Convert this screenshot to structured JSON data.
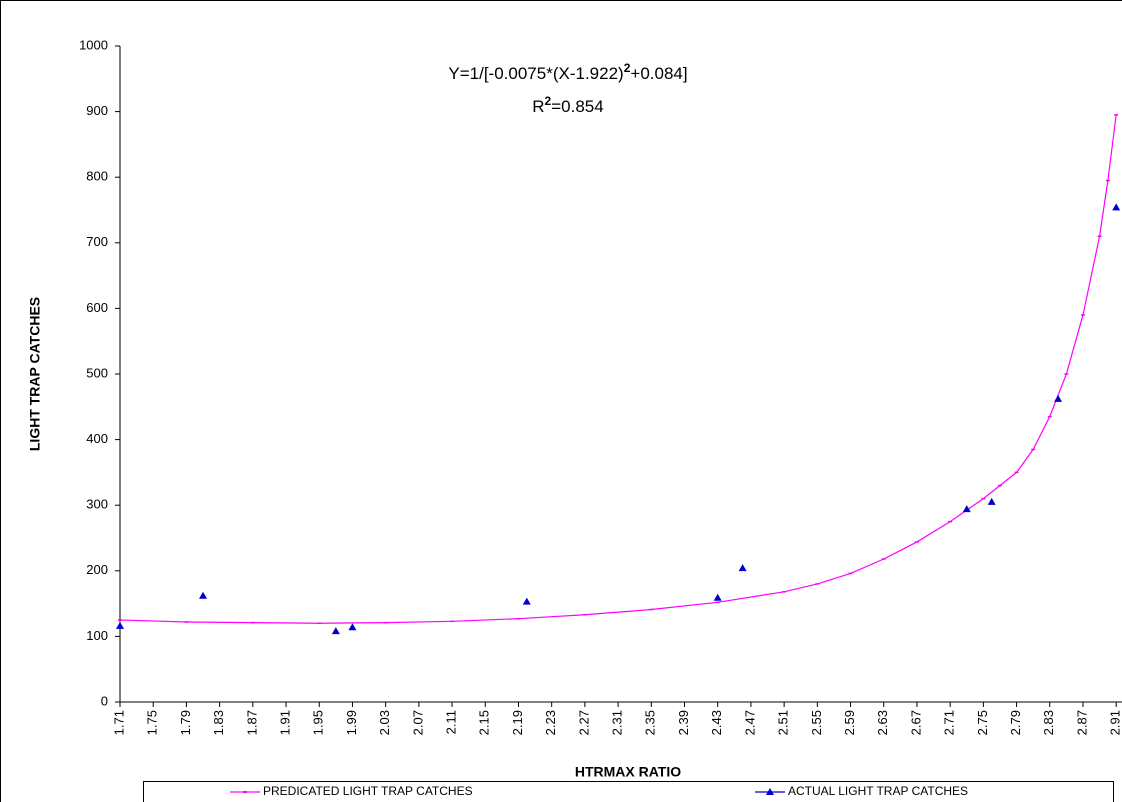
{
  "chart_data": {
    "type": "line",
    "equation_parts": [
      "Y=1/[-0.0075*(X-1.922)",
      "2",
      "+0.084]"
    ],
    "r2_parts": [
      "R",
      "2",
      "=0.854"
    ],
    "x_label": "HTRMAX RATIO",
    "y_label": "LIGHT TRAP CATCHES",
    "xlim": [
      1.71,
      2.917
    ],
    "xticks": [
      {
        "value": 1.71,
        "label": "1.71"
      },
      {
        "value": 1.75,
        "label": "1.75"
      },
      {
        "value": 1.79,
        "label": "1.79"
      },
      {
        "value": 1.83,
        "label": "1.83"
      },
      {
        "value": 1.87,
        "label": "1.87"
      },
      {
        "value": 1.91,
        "label": "1.91"
      },
      {
        "value": 1.95,
        "label": "1.95"
      },
      {
        "value": 1.99,
        "label": "1.99"
      },
      {
        "value": 2.03,
        "label": "2.03"
      },
      {
        "value": 2.07,
        "label": "2.07"
      },
      {
        "value": 2.11,
        "label": "2.11"
      },
      {
        "value": 2.15,
        "label": "2.15"
      },
      {
        "value": 2.19,
        "label": "2.19"
      },
      {
        "value": 2.23,
        "label": "2.23"
      },
      {
        "value": 2.27,
        "label": "2.27"
      },
      {
        "value": 2.31,
        "label": "2.31"
      },
      {
        "value": 2.35,
        "label": "2.35"
      },
      {
        "value": 2.39,
        "label": "2.39"
      },
      {
        "value": 2.43,
        "label": "2.43"
      },
      {
        "value": 2.47,
        "label": "2.47"
      },
      {
        "value": 2.51,
        "label": "2.51"
      },
      {
        "value": 2.55,
        "label": "2.55"
      },
      {
        "value": 2.59,
        "label": "2.59"
      },
      {
        "value": 2.63,
        "label": "2.63"
      },
      {
        "value": 2.67,
        "label": "2.67"
      },
      {
        "value": 2.71,
        "label": "2.71"
      },
      {
        "value": 2.75,
        "label": "2.75"
      },
      {
        "value": 2.79,
        "label": "2.79"
      },
      {
        "value": 2.83,
        "label": "2.83"
      },
      {
        "value": 2.87,
        "label": "2.87"
      },
      {
        "value": 2.91,
        "label": "2.91"
      }
    ],
    "ylim": [
      0,
      1000
    ],
    "yticks": [
      0,
      100,
      200,
      300,
      400,
      500,
      600,
      700,
      800,
      900,
      1000
    ],
    "series": [
      {
        "name": "PREDICATED LIGHT TRAP CATCHES",
        "color": "#ff00ff",
        "style": "line",
        "x": [
          1.71,
          1.79,
          1.87,
          1.95,
          2.03,
          2.11,
          2.19,
          2.27,
          2.35,
          2.43,
          2.51,
          2.55,
          2.59,
          2.63,
          2.67,
          2.71,
          2.75,
          2.77,
          2.79,
          2.81,
          2.83,
          2.85,
          2.87,
          2.89,
          2.9,
          2.91
        ],
        "values": [
          125,
          122,
          121,
          120,
          121,
          123,
          127,
          133,
          141,
          152,
          168,
          180,
          196,
          218,
          244,
          275,
          310,
          330,
          350,
          385,
          435,
          500,
          590,
          710,
          795,
          895
        ]
      },
      {
        "name": "ACTUAL LIGHT TRAP CATCHES",
        "color": "#0000cc",
        "style": "markers",
        "x": [
          1.71,
          1.81,
          1.97,
          1.99,
          2.2,
          2.43,
          2.46,
          2.73,
          2.76,
          2.84,
          2.91
        ],
        "values": [
          116,
          162,
          108,
          114,
          153,
          159,
          204,
          294,
          305,
          462,
          754
        ]
      }
    ]
  }
}
